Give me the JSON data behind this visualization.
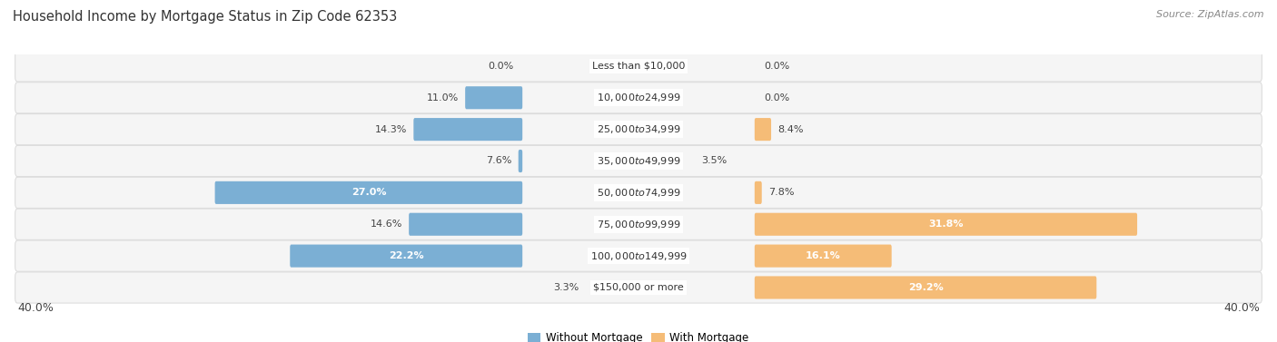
{
  "title": "Household Income by Mortgage Status in Zip Code 62353",
  "source": "Source: ZipAtlas.com",
  "categories": [
    "Less than $10,000",
    "$10,000 to $24,999",
    "$25,000 to $34,999",
    "$35,000 to $49,999",
    "$50,000 to $74,999",
    "$75,000 to $99,999",
    "$100,000 to $149,999",
    "$150,000 or more"
  ],
  "without_mortgage": [
    0.0,
    11.0,
    14.3,
    7.6,
    27.0,
    14.6,
    22.2,
    3.3
  ],
  "with_mortgage": [
    0.0,
    0.0,
    8.4,
    3.5,
    7.8,
    31.8,
    16.1,
    29.2
  ],
  "color_without": "#7bafd4",
  "color_with": "#f5bc77",
  "axis_max": 40.0,
  "page_bg": "#ffffff",
  "row_bg": "#f5f5f5",
  "row_border": "#dddddd",
  "legend_label_without": "Without Mortgage",
  "legend_label_with": "With Mortgage",
  "title_fontsize": 10.5,
  "source_fontsize": 8,
  "tick_fontsize": 9,
  "label_fontsize": 8,
  "category_fontsize": 8,
  "cat_label_threshold_inside": 18,
  "cat_label_threshold_outside": 5
}
